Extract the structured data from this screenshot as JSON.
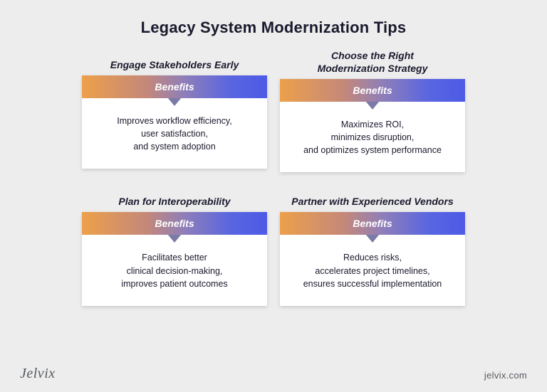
{
  "title": "Legacy System Modernization Tips",
  "benefits_label": "Benefits",
  "gradient": {
    "start": "#eda04a",
    "mid1": "#c4887a",
    "mid2": "#8f7fb8",
    "mid3": "#5a66e0",
    "end": "#4c5ae6"
  },
  "background_color": "#ededed",
  "card_bg": "#ffffff",
  "text_color": "#1a1a2e",
  "pointer_color": "#7b7aa8",
  "cards": [
    {
      "heading": "Engage Stakeholders Early",
      "body": "Improves workflow efficiency,\nuser satisfaction,\nand system adoption"
    },
    {
      "heading": "Choose the Right\nModernization Strategy",
      "body": "Maximizes ROI,\nminimizes disruption,\nand optimizes system performance"
    },
    {
      "heading": "Plan for Interoperability",
      "body": "Facilitates better\nclinical decision-making,\nimproves patient outcomes"
    },
    {
      "heading": "Partner with Experienced Vendors",
      "body": "Reduces risks,\naccelerates project timelines,\nensures successful implementation"
    }
  ],
  "footer": {
    "brand": "Jelvix",
    "url": "jelvix.com"
  }
}
